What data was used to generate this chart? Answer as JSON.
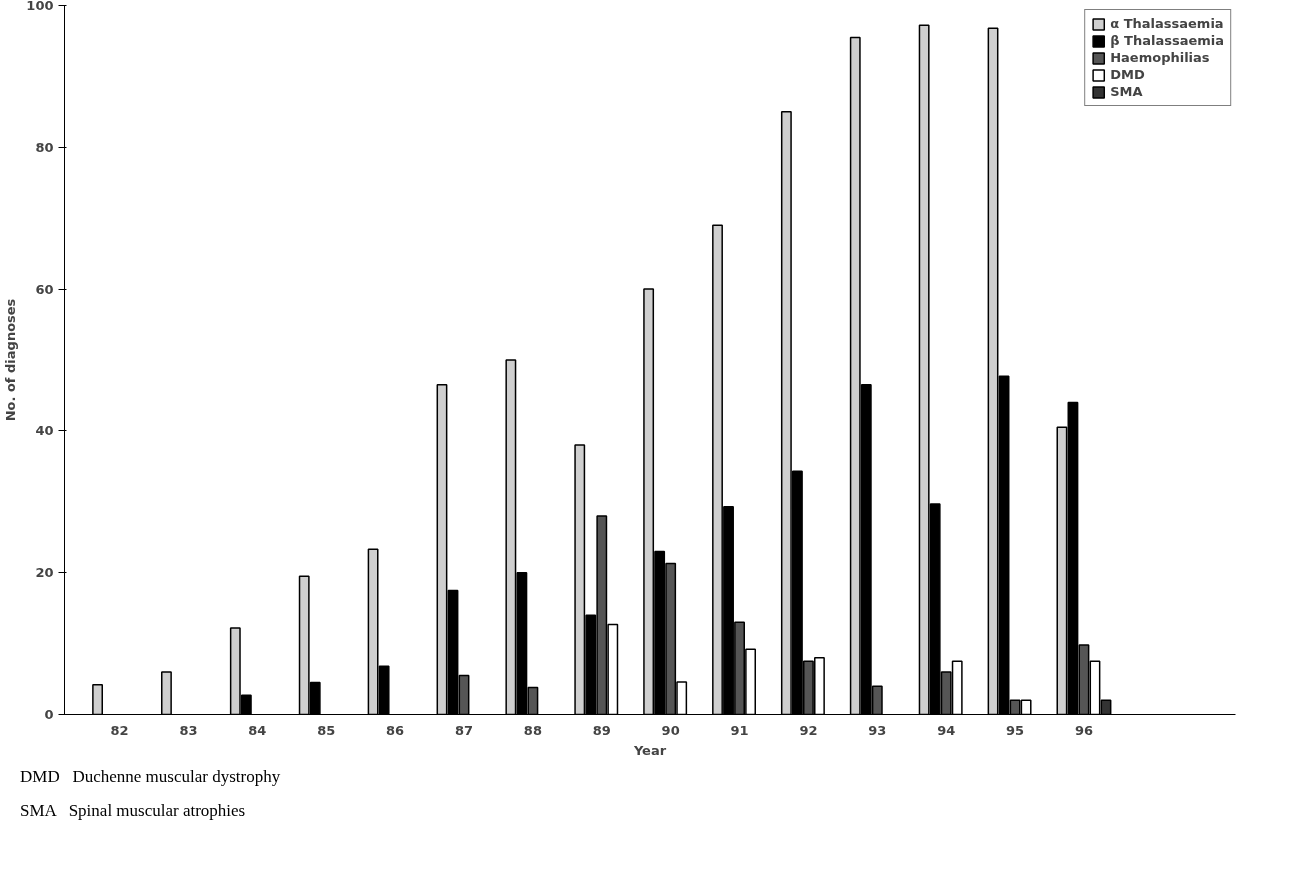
{
  "chart_data": {
    "type": "bar",
    "xlabel": "Year",
    "ylabel": "No. of diagnoses",
    "categories": [
      "82",
      "83",
      "84",
      "85",
      "86",
      "87",
      "88",
      "89",
      "90",
      "91",
      "92",
      "93",
      "94",
      "95",
      "96"
    ],
    "series": [
      {
        "name": "α Thalassaemia",
        "color": "#cfcfcf",
        "values": [
          4.2,
          6,
          12.2,
          19.5,
          23.3,
          46.5,
          50,
          38,
          60,
          69,
          85,
          95.5,
          97.2,
          96.8,
          40.5
        ]
      },
      {
        "name": "β Thalassaemia",
        "color": "#000000",
        "values": [
          null,
          null,
          2.7,
          4.5,
          6.8,
          17.5,
          20,
          14,
          23,
          29.3,
          34.3,
          46.5,
          29.7,
          47.7,
          44
        ]
      },
      {
        "name": "Haemophilias",
        "color": "#555555",
        "values": [
          null,
          null,
          null,
          null,
          null,
          5.5,
          3.8,
          28,
          21.3,
          13,
          7.5,
          4,
          6,
          2,
          9.8
        ]
      },
      {
        "name": "DMD",
        "color": "#ffffff",
        "values": [
          null,
          null,
          null,
          null,
          null,
          null,
          null,
          12.7,
          4.6,
          9.2,
          8,
          null,
          7.5,
          2,
          7.5
        ]
      },
      {
        "name": "SMA",
        "color": "#333333",
        "values": [
          null,
          null,
          null,
          null,
          null,
          null,
          null,
          null,
          null,
          null,
          null,
          null,
          null,
          null,
          2
        ]
      }
    ],
    "ylim": [
      0,
      100
    ],
    "yticks": [
      0,
      20,
      40,
      60,
      80,
      100
    ],
    "grid": false,
    "legend": "top right",
    "annotations": [
      "DMD   Duchenne muscular dystrophy",
      "SMA   Spinal muscular atrophies"
    ]
  }
}
